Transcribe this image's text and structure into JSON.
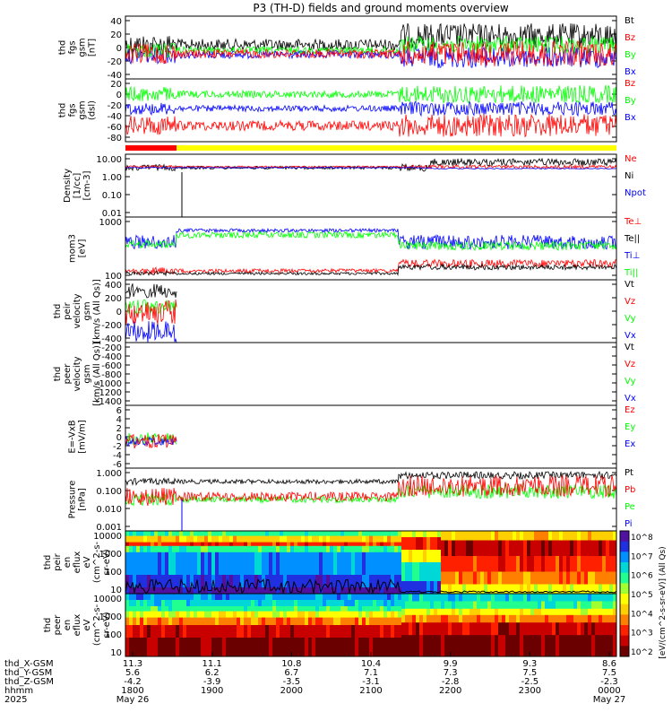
{
  "title": "P3 (TH-D) fields and ground moments overview",
  "colors": {
    "black": "#000000",
    "red": "#ff0000",
    "green": "#00ff00",
    "blue": "#0000ff",
    "yellow": "#ffff00"
  },
  "panels": [
    {
      "id": "fgs-gsm",
      "ylabel": [
        "thd",
        "fgs",
        "gsm",
        "[nT]"
      ],
      "ticks": [
        "40",
        "20",
        "0",
        "-20",
        "-40"
      ],
      "legend": [
        {
          "text": "Bt",
          "color": "#000000"
        },
        {
          "text": "Bz",
          "color": "#ff0000"
        },
        {
          "text": "By",
          "color": "#00ff00"
        },
        {
          "text": "Bx",
          "color": "#0000ff"
        }
      ]
    },
    {
      "id": "fgs-dsl",
      "ylabel": [
        "thd",
        "fgs",
        "gsm",
        "(dsl)"
      ],
      "ticks": [
        "20",
        "0",
        "-20",
        "-40",
        "-60",
        "-80"
      ],
      "legend": [
        {
          "text": "Bz",
          "color": "#ff0000"
        },
        {
          "text": "By",
          "color": "#00ff00"
        },
        {
          "text": "Bx",
          "color": "#0000ff"
        }
      ]
    },
    {
      "id": "density",
      "ylabel": [
        "Density",
        "[1/cc]",
        "[cm-3]"
      ],
      "ticks": [
        "10.00",
        "1.00",
        "0.10",
        "0.01"
      ],
      "legend": [
        {
          "text": "Ne",
          "color": "#ff0000"
        },
        {
          "text": "Ni",
          "color": "#000000"
        },
        {
          "text": "Npot",
          "color": "#0000ff"
        }
      ]
    },
    {
      "id": "temperature",
      "ylabel": [
        "mom3",
        "[eV]"
      ],
      "ticks": [
        "1000",
        "100"
      ],
      "legend": [
        {
          "text": "Te⊥",
          "color": "#ff0000"
        },
        {
          "text": "Te||",
          "color": "#000000"
        },
        {
          "text": "Ti⊥",
          "color": "#0000ff"
        },
        {
          "text": "Ti||",
          "color": "#00ff00"
        }
      ]
    },
    {
      "id": "peir-velocity",
      "ylabel": [
        "thd",
        "peir",
        "velocity",
        "gsm",
        "[km/s (All Qs)]"
      ],
      "ticks": [
        "400",
        "200",
        "0",
        "-200",
        "-400"
      ],
      "legend": [
        {
          "text": "Vt",
          "color": "#000000"
        },
        {
          "text": "Vz",
          "color": "#ff0000"
        },
        {
          "text": "Vy",
          "color": "#00ff00"
        },
        {
          "text": "Vx",
          "color": "#0000ff"
        }
      ]
    },
    {
      "id": "peer-velocity",
      "ylabel": [
        "thd",
        "peer",
        "velocity",
        "gsm",
        "[km/s (All Qs)]"
      ],
      "ticks": [
        "-200",
        "-400",
        "-600",
        "-800",
        "-1000",
        "-1200",
        "-1400"
      ],
      "legend": [
        {
          "text": "Vt",
          "color": "#000000"
        },
        {
          "text": "Vz",
          "color": "#ff0000"
        },
        {
          "text": "Vy",
          "color": "#00ff00"
        },
        {
          "text": "Vx",
          "color": "#0000ff"
        }
      ]
    },
    {
      "id": "efield",
      "ylabel": [
        "E=-VxB",
        "[mV/m]"
      ],
      "ticks": [
        "6",
        "4",
        "2",
        "0",
        "-2",
        "-4",
        "-6"
      ],
      "legend": [
        {
          "text": "Ez",
          "color": "#ff0000"
        },
        {
          "text": "Ey",
          "color": "#00ff00"
        },
        {
          "text": "Ex",
          "color": "#0000ff"
        }
      ]
    },
    {
      "id": "pressure",
      "ylabel": [
        "Pressure",
        "[nPa]"
      ],
      "ticks": [
        "1.000",
        "0.100",
        "0.010",
        "0.001"
      ],
      "legend": [
        {
          "text": "Pt",
          "color": "#000000"
        },
        {
          "text": "Pb",
          "color": "#ff0000"
        },
        {
          "text": "Pe",
          "color": "#00ff00"
        },
        {
          "text": "Pi",
          "color": "#0000ff"
        }
      ]
    },
    {
      "id": "peir-spec",
      "ylabel": [
        "thd",
        "peir",
        "en",
        "eflux",
        "eV",
        "(cm^2-s-",
        "sr-eV)"
      ],
      "ticks": [
        "10000",
        "1000",
        "100",
        "10"
      ],
      "legend": []
    },
    {
      "id": "peer-spec",
      "ylabel": [
        "thd",
        "peer",
        "en",
        "eflux",
        "eV",
        "(cm^2-s-",
        "sr-eV)"
      ],
      "ticks": [
        "10000",
        "1000",
        "100",
        "10"
      ],
      "legend": []
    }
  ],
  "colorbar": {
    "ticks": [
      "10^8",
      "10^7",
      "10^6",
      "10^5",
      "10^4",
      "10^3",
      "10^2"
    ],
    "label": "[eV/(cm^2-s-sr-eV)] (All Qs)"
  },
  "xaxis": {
    "rows": [
      {
        "label": "thd_X-GSM",
        "values": [
          "11.3",
          "11.1",
          "10.8",
          "10.4",
          "9.9",
          "9.3",
          "8.6"
        ]
      },
      {
        "label": "thd_Y-GSM",
        "values": [
          "5.6",
          "6.2",
          "6.7",
          "7.1",
          "7.3",
          "7.5",
          "7.5"
        ]
      },
      {
        "label": "thd_Z-GSM",
        "values": [
          "-4.2",
          "-3.9",
          "-3.5",
          "-3.1",
          "-2.8",
          "-2.5",
          "-2.3"
        ]
      }
    ],
    "time_label": "hhmm",
    "year_label": "2025",
    "hhmm": [
      "1800",
      "1900",
      "2000",
      "2100",
      "2200",
      "2300",
      "0000"
    ],
    "date_left": "May 26",
    "date_right": "May 27"
  }
}
